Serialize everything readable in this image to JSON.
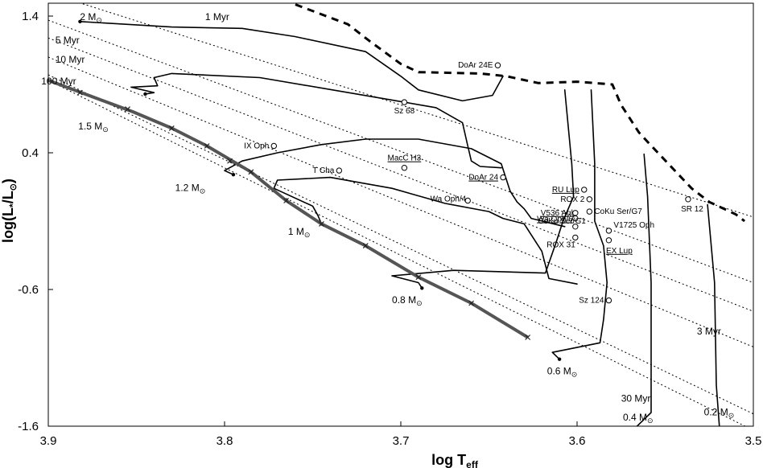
{
  "chart_data": {
    "type": "scatter",
    "xlabel": "log T",
    "xlabel_sub": "eff",
    "ylabel": "log(L",
    "ylabel_sub": "*",
    "ylabel_mid": "/L",
    "ylabel_sub2": "⊙",
    "ylabel_end": ")",
    "xlim": [
      3.9,
      3.5
    ],
    "ylim": [
      -1.6,
      1.5
    ],
    "x_ticks": [
      "3.9",
      "3.8",
      "3.7",
      "3.6",
      "3.5"
    ],
    "y_ticks": [
      "1.4",
      "0.4",
      "-0.6",
      "-1.6"
    ],
    "grid": false,
    "stars": [
      {
        "name": "DoAr 24E",
        "x": 3.645,
        "y": 1.04,
        "underline": false
      },
      {
        "name": "Sz 68",
        "x": 3.698,
        "y": 0.77,
        "underline": false
      },
      {
        "name": "IX Oph",
        "x": 3.772,
        "y": 0.45,
        "underline": false
      },
      {
        "name": "MacC H3",
        "x": 3.698,
        "y": 0.29,
        "underline": true
      },
      {
        "name": "T Cha",
        "x": 3.735,
        "y": 0.27,
        "underline": false
      },
      {
        "name": "DoAr 24",
        "x": 3.642,
        "y": 0.22,
        "underline": true
      },
      {
        "name": "Wa Oph/4",
        "x": 3.662,
        "y": 0.05,
        "underline": false
      },
      {
        "name": "RU Lup",
        "x": 3.596,
        "y": 0.13,
        "underline": true
      },
      {
        "name": "ROX 2",
        "x": 3.593,
        "y": 0.06,
        "underline": false
      },
      {
        "name": "V536 Aql",
        "x": 3.601,
        "y": -0.04,
        "underline": true
      },
      {
        "name": "CoKu Ser/G7",
        "x": 3.593,
        "y": -0.03,
        "underline": false
      },
      {
        "name": "Wa Oph/6",
        "x": 3.601,
        "y": -0.08,
        "underline": true
      },
      {
        "name": "V1725 Oph",
        "x": 3.582,
        "y": -0.17,
        "underline": false
      },
      {
        "name": "CoKu Ser/G1",
        "x": 3.601,
        "y": -0.14,
        "underline": false
      },
      {
        "name": "ROX 31",
        "x": 3.601,
        "y": -0.22,
        "underline": false
      },
      {
        "name": "EX Lup",
        "x": 3.582,
        "y": -0.24,
        "underline": true
      },
      {
        "name": "SR 12",
        "x": 3.537,
        "y": 0.06,
        "underline": false
      },
      {
        "name": "Sz 124",
        "x": 3.582,
        "y": -0.68,
        "underline": false
      }
    ],
    "mass_tracks": [
      {
        "label": "2 M",
        "points": [
          [
            3.882,
            1.36
          ],
          [
            3.83,
            1.32
          ],
          [
            3.79,
            1.31
          ],
          [
            3.76,
            1.25
          ],
          [
            3.72,
            1.14
          ],
          [
            3.7,
            0.96
          ],
          [
            3.69,
            0.86
          ],
          [
            3.665,
            0.78
          ],
          [
            3.648,
            0.82
          ],
          [
            3.642,
            0.96
          ]
        ]
      },
      {
        "label": "1.5 M",
        "points": [
          [
            3.845,
            0.83
          ],
          [
            3.84,
            0.84
          ],
          [
            3.853,
            0.88
          ],
          [
            3.838,
            0.89
          ],
          [
            3.84,
            0.95
          ],
          [
            3.83,
            0.98
          ],
          [
            3.78,
            0.95
          ],
          [
            3.725,
            0.83
          ],
          [
            3.68,
            0.73
          ],
          [
            3.665,
            0.62
          ],
          [
            3.662,
            0.45
          ],
          [
            3.66,
            0.34
          ],
          [
            3.655,
            0.3
          ],
          [
            3.643,
            0.29
          ]
        ]
      },
      {
        "label": "1.2 M",
        "points": [
          [
            3.795,
            0.24
          ],
          [
            3.8,
            0.27
          ],
          [
            3.79,
            0.34
          ],
          [
            3.77,
            0.4
          ],
          [
            3.745,
            0.46
          ],
          [
            3.72,
            0.5
          ],
          [
            3.69,
            0.5
          ],
          [
            3.66,
            0.43
          ],
          [
            3.643,
            0.32
          ],
          [
            3.638,
            0.12
          ],
          [
            3.634,
            0.04
          ],
          [
            3.63,
            -0.01
          ],
          [
            3.626,
            -0.08
          ],
          [
            3.607,
            -0.14
          ]
        ]
      },
      {
        "label": "1 M",
        "points": [
          [
            3.745,
            -0.12
          ],
          [
            3.747,
            -0.06
          ],
          [
            3.75,
            0.01
          ],
          [
            3.772,
            0.14
          ],
          [
            3.77,
            0.2
          ],
          [
            3.74,
            0.22
          ],
          [
            3.705,
            0.14
          ],
          [
            3.675,
            0.03
          ],
          [
            3.65,
            -0.03
          ],
          [
            3.642,
            -0.08
          ],
          [
            3.63,
            -0.12
          ],
          [
            3.62,
            -0.32
          ],
          [
            3.616,
            -0.52
          ],
          [
            3.6,
            -0.56
          ]
        ]
      },
      {
        "label": "0.8 M",
        "points": [
          [
            3.688,
            -0.59
          ],
          [
            3.69,
            -0.55
          ],
          [
            3.705,
            -0.5
          ],
          [
            3.67,
            -0.46
          ],
          [
            3.618,
            -0.48
          ],
          [
            3.612,
            -0.26
          ],
          [
            3.608,
            -0.1
          ],
          [
            3.602,
            0.08
          ],
          [
            3.603,
            0.32
          ],
          [
            3.607,
            0.86
          ]
        ]
      },
      {
        "label": "0.6 M",
        "points": [
          [
            3.61,
            -1.11
          ],
          [
            3.614,
            -1.06
          ],
          [
            3.587,
            -0.99
          ],
          [
            3.585,
            -0.82
          ],
          [
            3.583,
            -0.55
          ],
          [
            3.585,
            -0.28
          ],
          [
            3.59,
            -0.1
          ],
          [
            3.59,
            0.32
          ],
          [
            3.592,
            0.86
          ]
        ]
      },
      {
        "label": "0.4 M",
        "points": [
          [
            3.57,
            -1.65
          ],
          [
            3.558,
            -1.5
          ],
          [
            3.558,
            -0.55
          ],
          [
            3.56,
            0.08
          ],
          [
            3.562,
            0.39
          ]
        ]
      },
      {
        "label": "0.2 M",
        "points": [
          [
            3.519,
            -1.65
          ],
          [
            3.521,
            -1.3
          ],
          [
            3.522,
            -0.55
          ],
          [
            3.526,
            0.02
          ]
        ]
      }
    ],
    "isochrones": [
      {
        "label": "1 Myr",
        "y_at_39": 1.57,
        "slope": 4.1
      },
      {
        "label": "3 Myr",
        "y_at_39": 1.37,
        "slope": 4.8
      },
      {
        "label": "5 Myr",
        "y_at_39": 1.24,
        "slope": 5.0
      },
      {
        "label": "10 Myr",
        "y_at_39": 1.1,
        "slope": 5.3
      },
      {
        "label": "30 Myr",
        "y_at_39": 0.97,
        "slope": 6.2
      },
      {
        "label": "100 Myr",
        "y_at_39": 0.93,
        "slope": 6.4
      }
    ],
    "zams": {
      "points": [
        [
          3.9,
          0.93
        ],
        [
          3.852,
          0.7
        ],
        [
          3.83,
          0.58
        ],
        [
          3.81,
          0.45
        ],
        [
          3.785,
          0.26
        ],
        [
          3.765,
          0.05
        ],
        [
          3.745,
          -0.12
        ],
        [
          3.72,
          -0.28
        ],
        [
          3.69,
          -0.51
        ],
        [
          3.66,
          -0.7
        ],
        [
          3.628,
          -0.95
        ]
      ],
      "ticks": [
        [
          3.882,
          0.84
        ],
        [
          3.855,
          0.72
        ],
        [
          3.83,
          0.58
        ],
        [
          3.81,
          0.45
        ],
        [
          3.797,
          0.34
        ],
        [
          3.785,
          0.26
        ],
        [
          3.765,
          0.05
        ],
        [
          3.745,
          -0.12
        ],
        [
          3.72,
          -0.28
        ],
        [
          3.69,
          -0.51
        ],
        [
          3.66,
          -0.7
        ],
        [
          3.628,
          -0.95
        ]
      ]
    },
    "birthline": [
      [
        3.835,
        1.85
      ],
      [
        3.73,
        1.34
      ],
      [
        3.718,
        1.22
      ],
      [
        3.7,
        1.05
      ],
      [
        3.69,
        0.99
      ],
      [
        3.655,
        0.98
      ],
      [
        3.64,
        0.96
      ],
      [
        3.622,
        0.91
      ],
      [
        3.6,
        0.92
      ],
      [
        3.58,
        0.9
      ],
      [
        3.575,
        0.75
      ],
      [
        3.565,
        0.55
      ],
      [
        3.56,
        0.48
      ],
      [
        3.535,
        0.14
      ],
      [
        3.525,
        0.04
      ],
      [
        3.51,
        -0.05
      ],
      [
        3.505,
        -0.1
      ]
    ],
    "mass_labels": [
      {
        "text": "2 M",
        "x": 3.882,
        "y": 1.37
      },
      {
        "text": "1.5 M",
        "x": 3.883,
        "y": 0.57
      },
      {
        "text": "1.2 M",
        "x": 3.828,
        "y": 0.12
      },
      {
        "text": "1 M",
        "x": 3.764,
        "y": -0.2
      },
      {
        "text": "0.8 M",
        "x": 3.705,
        "y": -0.7
      },
      {
        "text": "0.6 M",
        "x": 3.617,
        "y": -1.22
      },
      {
        "text": "0.4 M",
        "x": 3.574,
        "y": -1.56
      },
      {
        "text": "0.2 M",
        "x": 3.528,
        "y": -1.52
      }
    ],
    "age_labels": [
      {
        "text": "1 Myr",
        "x": 3.811,
        "y": 1.37,
        "anchor": "start"
      },
      {
        "text": "5 Myr",
        "x": 3.896,
        "y": 1.2,
        "anchor": "start"
      },
      {
        "text": "10 Myr",
        "x": 3.896,
        "y": 1.06,
        "anchor": "start"
      },
      {
        "text": "100 Myr",
        "x": 3.904,
        "y": 0.9,
        "anchor": "start"
      },
      {
        "text": "3 Myr",
        "x": 3.532,
        "y": -0.93,
        "anchor": "start"
      },
      {
        "text": "30 Myr",
        "x": 3.575,
        "y": -1.42,
        "anchor": "start"
      }
    ],
    "sun_symbol": "⊙"
  }
}
